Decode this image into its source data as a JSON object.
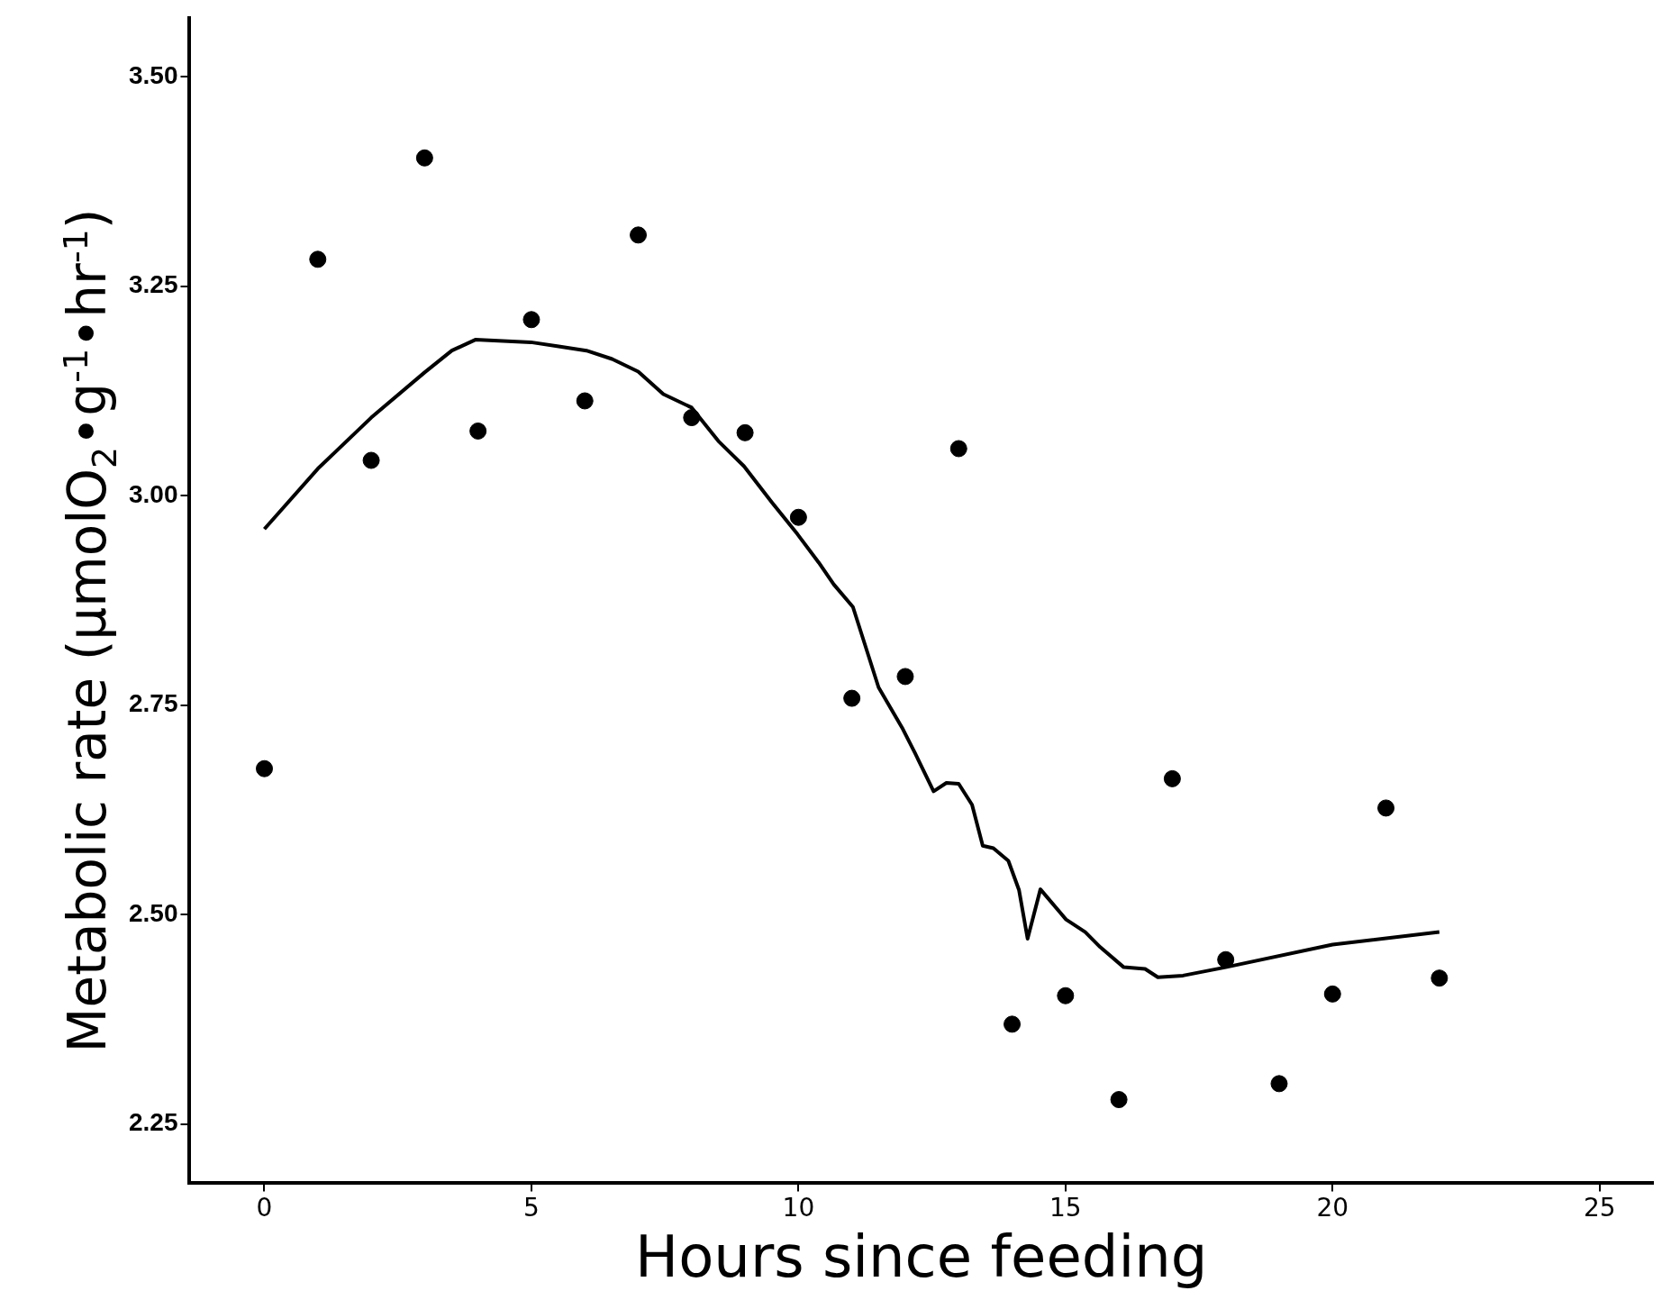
{
  "chart_data": {
    "type": "scatter",
    "xlabel": "Hours since feeding",
    "ylabel": "Metabolic rate (µmolO$_{2}$•g$^{-1}$•hr$^{-1}$)",
    "xlim": [
      -1.4,
      26
    ],
    "xticks": [
      0,
      5,
      10,
      15,
      20,
      25
    ],
    "ylim": [
      2.18,
      3.57
    ],
    "yticks": [
      2.25,
      {
        "value": 2.5,
        "label": "2.50"
      },
      2.75,
      {
        "value": 3,
        "label": "3.00"
      },
      3.25,
      {
        "value": 3.5,
        "label": "3.50"
      }
    ],
    "grid": false,
    "legend": false,
    "series": [
      {
        "type": "scatter",
        "marker": "circle",
        "color": "#000000",
        "x": [
          0,
          1,
          2,
          3,
          4,
          5,
          6,
          7,
          8,
          9,
          10,
          11,
          12,
          13,
          14,
          15,
          16,
          17,
          18,
          19,
          20,
          21,
          22
        ],
        "values": [
          2.674,
          3.282,
          3.042,
          3.403,
          3.077,
          3.21,
          3.113,
          3.311,
          3.093,
          3.075,
          2.974,
          2.758,
          2.784,
          3.056,
          2.369,
          2.403,
          2.279,
          2.662,
          2.446,
          2.298,
          2.405,
          2.627,
          2.424
        ]
      },
      {
        "type": "line",
        "marker": "none",
        "line_style": "solid",
        "color": "#000000",
        "x": [
          0,
          1,
          2,
          3,
          3.51,
          3.95,
          4.99,
          5.51,
          6.03,
          6.51,
          7,
          7.47,
          8,
          8.5,
          8.98,
          9.5,
          9.98,
          10.38,
          10.66,
          11.02,
          11.5,
          11.94,
          12.18,
          12.53,
          12.77,
          13,
          13.25,
          13.45,
          13.65,
          13.93,
          14.13,
          14.29,
          14.53,
          15.01,
          15.37,
          15.65,
          16.09,
          16.49,
          16.73,
          17.2,
          18,
          20,
          22
        ],
        "values": [
          2.96,
          3.032,
          3.093,
          3.147,
          3.173,
          3.186,
          3.183,
          3.178,
          3.173,
          3.163,
          3.148,
          3.121,
          3.105,
          3.065,
          3.035,
          2.992,
          2.954,
          2.92,
          2.894,
          2.867,
          2.771,
          2.723,
          2.693,
          2.647,
          2.657,
          2.656,
          2.631,
          2.582,
          2.579,
          2.564,
          2.529,
          2.471,
          2.53,
          2.494,
          2.479,
          2.461,
          2.437,
          2.435,
          2.425,
          2.427,
          2.437,
          2.464,
          2.479
        ]
      }
    ]
  }
}
